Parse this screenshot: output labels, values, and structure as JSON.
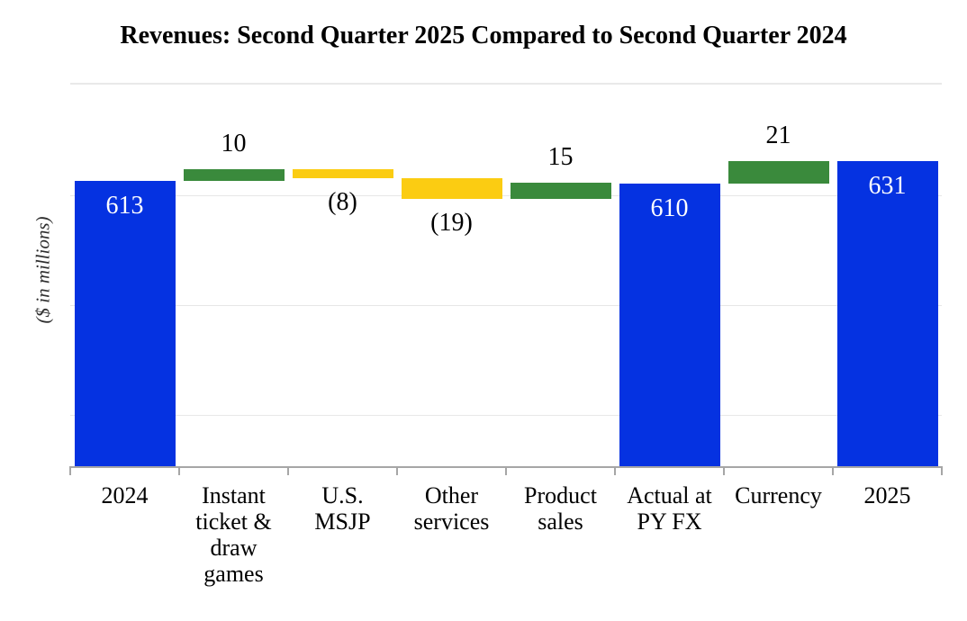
{
  "chart_data": {
    "type": "bar",
    "subtype": "waterfall",
    "title": "Revenues: Second Quarter 2025 Compared to Second Quarter 2024",
    "xlabel": "",
    "ylabel": "($ in millions)",
    "legend": "none",
    "y_tick_labels_shown": false,
    "categories": [
      "2024",
      "Instant ticket & draw games",
      "U.S. MSJP",
      "Other services",
      "Product sales",
      "Actual at PY FX",
      "Currency",
      "2025"
    ],
    "values": [
      613,
      10,
      -8,
      -19,
      15,
      610,
      21,
      631
    ],
    "bars": [
      {
        "id": "2024",
        "kind": "total",
        "value": 613,
        "display_label": "613",
        "label_position": "inside",
        "tick_label_lines": [
          "2024"
        ]
      },
      {
        "id": "instant-ticket-draw-games",
        "kind": "increase",
        "value": 10,
        "display_label": "10",
        "label_position": "above",
        "tick_label_lines": [
          "Instant",
          "ticket &",
          "draw",
          "games"
        ]
      },
      {
        "id": "us-msjp",
        "kind": "decrease",
        "value": -8,
        "display_label": "(8)",
        "label_position": "below",
        "tick_label_lines": [
          "U.S.",
          "MSJP"
        ]
      },
      {
        "id": "other-services",
        "kind": "decrease",
        "value": -19,
        "display_label": "(19)",
        "label_position": "below",
        "tick_label_lines": [
          "Other",
          "services"
        ]
      },
      {
        "id": "product-sales",
        "kind": "increase",
        "value": 15,
        "display_label": "15",
        "label_position": "above",
        "tick_label_lines": [
          "Product",
          "sales"
        ]
      },
      {
        "id": "actual-at-py-fx",
        "kind": "total",
        "value": 610,
        "display_label": "610",
        "label_position": "inside",
        "tick_label_lines": [
          "Actual at",
          "PY FX"
        ]
      },
      {
        "id": "currency",
        "kind": "increase",
        "value": 21,
        "display_label": "21",
        "label_position": "above",
        "tick_label_lines": [
          "Currency"
        ]
      },
      {
        "id": "2025",
        "kind": "total",
        "value": 631,
        "display_label": "631",
        "label_position": "inside",
        "tick_label_lines": [
          "2025"
        ]
      }
    ],
    "axis": {
      "y_min": 353,
      "y_max": 702,
      "gridline_values": [
        400,
        500,
        600
      ],
      "grid": "horizontal"
    }
  },
  "colors": {
    "total_bar": "#0532e1",
    "increase_bar": "#3a8a3c",
    "decrease_bar": "#fbcc12",
    "label_inside": "#ffffff",
    "label_outside": "#000000",
    "gridline": "#e7e7e7",
    "axis_line": "#a6a6a6",
    "background": "#ffffff",
    "title_text": "#000000"
  }
}
